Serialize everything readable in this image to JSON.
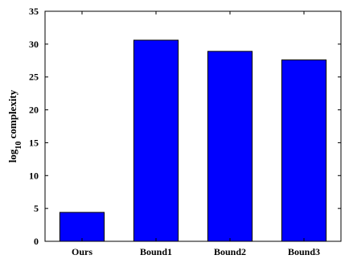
{
  "chart_data": {
    "type": "bar",
    "categories": [
      "Ours",
      "Bound1",
      "Bound2",
      "Bound3"
    ],
    "values": [
      4.4,
      30.6,
      28.9,
      27.6
    ],
    "ylabel_base": "log",
    "ylabel_sub": "10",
    "ylabel_rest": " complexity",
    "ylim": [
      0,
      35
    ],
    "yticks": [
      0,
      5,
      10,
      15,
      20,
      25,
      30,
      35
    ],
    "grid": false,
    "bar_color": "#0000ff",
    "edge_color": "#000000"
  }
}
